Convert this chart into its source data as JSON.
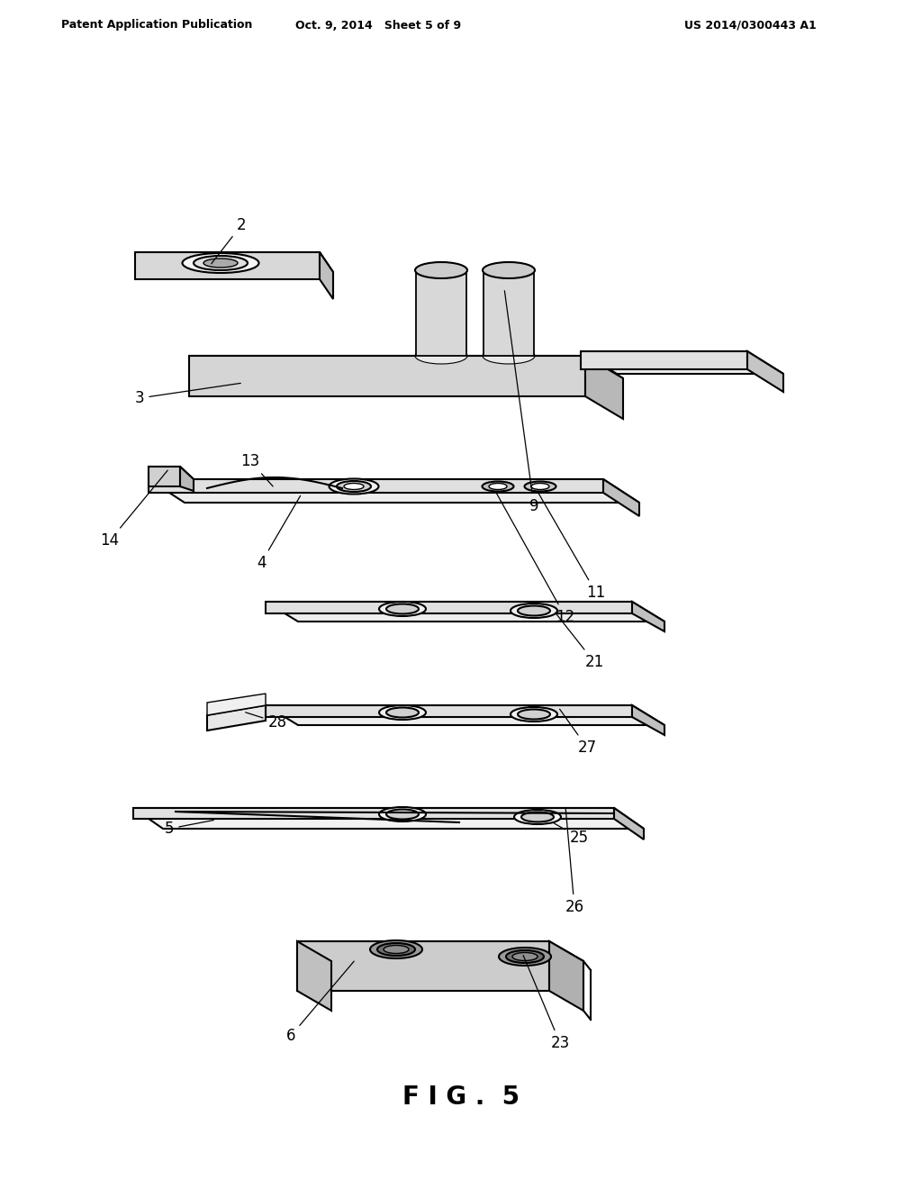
{
  "header_left": "Patent Application Publication",
  "header_center": "Oct. 9, 2014   Sheet 5 of 9",
  "header_right": "US 2014/0300443 A1",
  "fig_label": "F I G .  5",
  "background_color": "#ffffff"
}
